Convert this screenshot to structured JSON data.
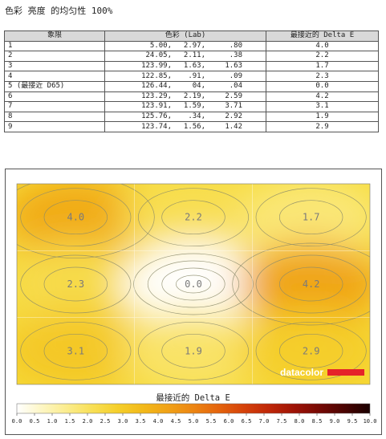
{
  "page_title": "色彩 亮度 的均匀性 100%",
  "table": {
    "headers": [
      "象限",
      "色彩 (Lab)",
      "最接近的 Delta E"
    ],
    "rows": [
      {
        "quadrant": "1",
        "L": "5.00,",
        "a": "2.97,",
        "b": ".80",
        "de": "4.0"
      },
      {
        "quadrant": "2",
        "L": "24.05,",
        "a": "2.11,",
        "b": ".38",
        "de": "2.2"
      },
      {
        "quadrant": "3",
        "L": "123.99,",
        "a": "1.63,",
        "b": "1.63",
        "de": "1.7"
      },
      {
        "quadrant": "4",
        "L": "122.85,",
        "a": ".91,",
        "b": ".09",
        "de": "2.3"
      },
      {
        "quadrant": "5 (最接近 D65)",
        "L": "126.44,",
        "a": "04,",
        "b": ".04",
        "de": "0.0"
      },
      {
        "quadrant": "6",
        "L": "123.29,",
        "a": "2.19,",
        "b": "2.59",
        "de": "4.2"
      },
      {
        "quadrant": "7",
        "L": "123.91,",
        "a": "1.59,",
        "b": "3.71",
        "de": "3.1"
      },
      {
        "quadrant": "8",
        "L": "125.76,",
        "a": ".34,",
        "b": "2.92",
        "de": "1.9"
      },
      {
        "quadrant": "9",
        "L": "123.74,",
        "a": "1.56,",
        "b": "1.42",
        "de": "2.9"
      }
    ]
  },
  "chart_data": {
    "type": "heatmap",
    "grid_rows": 3,
    "grid_cols": 3,
    "values": [
      [
        4.0,
        2.2,
        1.7
      ],
      [
        2.3,
        0.0,
        4.2
      ],
      [
        3.1,
        1.9,
        2.9
      ]
    ],
    "value_labels": [
      [
        "4.0",
        "2.2",
        "1.7"
      ],
      [
        "2.3",
        "0.0",
        "4.2"
      ],
      [
        "3.1",
        "1.9",
        "2.9"
      ]
    ],
    "scale_title": "最接近的 Delta E",
    "scale_ticks": [
      "0.0",
      "0.5",
      "1.0",
      "1.5",
      "2.0",
      "2.5",
      "3.0",
      "3.5",
      "4.0",
      "4.5",
      "5.0",
      "5.5",
      "6.0",
      "6.5",
      "7.0",
      "7.5",
      "8.0",
      "8.5",
      "9.0",
      "9.5",
      "10.0"
    ],
    "scale_range": [
      0,
      10
    ],
    "scale_colors": [
      "#ffffff",
      "#fdf6c3",
      "#fbec8c",
      "#f8df55",
      "#f5cf2a",
      "#f2b91a",
      "#f0a116",
      "#ec8512",
      "#e4640d",
      "#d5420a",
      "#bf2708",
      "#9e1306",
      "#760904",
      "#4a0402",
      "#1a0000"
    ],
    "logo_text": "datacolor",
    "logo_accent": "#e52329"
  }
}
